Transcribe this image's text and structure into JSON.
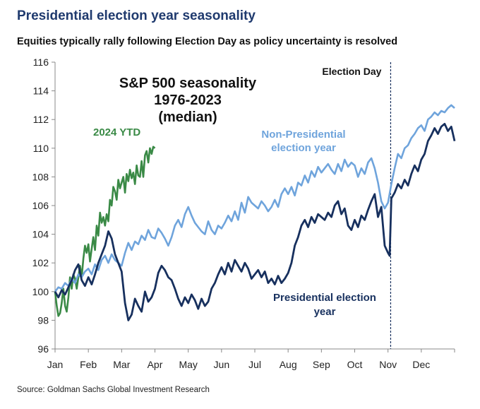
{
  "header": {
    "title": "Presidential election year seasonality",
    "subtitle": "Equities typically rally following Election Day as policy uncertainty is resolved"
  },
  "source": "Source: Goldman Sachs Global Investment Research",
  "chart_data": {
    "type": "line",
    "title": "S&P 500 seasonality 1976-2023 (median)",
    "title_lines": [
      "S&P 500 seasonality",
      "1976-2023",
      "(median)"
    ],
    "xlabel": "",
    "ylabel": "",
    "ylim": [
      96,
      116
    ],
    "yticks": [
      96,
      98,
      100,
      102,
      104,
      106,
      108,
      110,
      112,
      114,
      116
    ],
    "xlim": [
      0,
      12
    ],
    "months": [
      "Jan",
      "Feb",
      "Mar",
      "Apr",
      "May",
      "Jun",
      "Jul",
      "Aug",
      "Sep",
      "Oct",
      "Nov",
      "Dec"
    ],
    "grid": false,
    "colors": {
      "ytd": "#3a8a46",
      "non_presidential": "#6fa4dc",
      "presidential": "#17305e",
      "axis": "#888888"
    },
    "election_day": {
      "label": "Election Day",
      "x": 10.08
    },
    "annotations": {
      "ytd": "2024 YTD",
      "non_presidential": [
        "Non-Presidential",
        "election year"
      ],
      "presidential": [
        "Presidential election",
        "year"
      ]
    },
    "series": [
      {
        "name": "2024 YTD",
        "x": [
          0,
          0.05,
          0.1,
          0.15,
          0.2,
          0.25,
          0.3,
          0.35,
          0.4,
          0.45,
          0.5,
          0.55,
          0.6,
          0.65,
          0.7,
          0.75,
          0.8,
          0.85,
          0.9,
          0.95,
          1.0,
          1.05,
          1.1,
          1.15,
          1.2,
          1.25,
          1.3,
          1.35,
          1.4,
          1.45,
          1.5,
          1.55,
          1.6,
          1.65,
          1.7,
          1.75,
          1.8,
          1.85,
          1.9,
          1.95,
          2.0,
          2.05,
          2.1,
          2.15,
          2.2,
          2.25,
          2.3,
          2.35,
          2.4,
          2.45,
          2.5,
          2.55,
          2.6,
          2.65,
          2.7,
          2.75,
          2.8,
          2.85,
          2.9,
          2.95,
          3.0
        ],
        "values": [
          100.0,
          99.0,
          98.3,
          98.5,
          99.2,
          100.2,
          99.0,
          98.6,
          99.6,
          101.0,
          100.2,
          101.2,
          100.9,
          100.2,
          101.0,
          101.8,
          101.0,
          102.3,
          103.2,
          102.7,
          103.3,
          102.1,
          103.0,
          103.8,
          102.9,
          104.6,
          103.9,
          105.5,
          104.8,
          105.2,
          104.6,
          105.4,
          104.9,
          106.4,
          106.0,
          107.3,
          107.0,
          106.4,
          107.8,
          107.2,
          107.6,
          108.0,
          106.9,
          108.2,
          107.7,
          108.5,
          107.9,
          108.3,
          107.5,
          108.8,
          108.1,
          108.0,
          109.1,
          108.0,
          109.5,
          109.8,
          109.0,
          110.0,
          109.6,
          110.1,
          110.0
        ]
      },
      {
        "name": "Non-Presidential election year",
        "x": [
          0,
          0.1,
          0.2,
          0.3,
          0.4,
          0.5,
          0.6,
          0.7,
          0.8,
          0.9,
          1.0,
          1.1,
          1.2,
          1.3,
          1.4,
          1.5,
          1.6,
          1.7,
          1.8,
          1.9,
          2.0,
          2.1,
          2.2,
          2.3,
          2.4,
          2.5,
          2.6,
          2.7,
          2.8,
          2.9,
          3.0,
          3.1,
          3.2,
          3.3,
          3.4,
          3.5,
          3.6,
          3.7,
          3.8,
          3.9,
          4.0,
          4.1,
          4.2,
          4.3,
          4.4,
          4.5,
          4.6,
          4.7,
          4.8,
          4.9,
          5.0,
          5.1,
          5.2,
          5.3,
          5.4,
          5.5,
          5.6,
          5.7,
          5.8,
          5.9,
          6.0,
          6.1,
          6.2,
          6.3,
          6.4,
          6.5,
          6.6,
          6.7,
          6.8,
          6.9,
          7.0,
          7.1,
          7.2,
          7.3,
          7.4,
          7.5,
          7.6,
          7.7,
          7.8,
          7.9,
          8.0,
          8.1,
          8.2,
          8.3,
          8.4,
          8.5,
          8.6,
          8.7,
          8.8,
          8.9,
          9.0,
          9.1,
          9.2,
          9.3,
          9.4,
          9.5,
          9.6,
          9.7,
          9.8,
          9.9,
          10.0,
          10.1,
          10.2,
          10.3,
          10.4,
          10.5,
          10.6,
          10.7,
          10.8,
          10.9,
          11.0,
          11.1,
          11.2,
          11.3,
          11.4,
          11.5,
          11.6,
          11.7,
          11.8,
          11.9,
          12.0
        ],
        "values": [
          100.0,
          100.3,
          100.2,
          100.6,
          100.4,
          100.9,
          100.6,
          101.2,
          101.0,
          101.4,
          101.6,
          101.2,
          101.9,
          101.5,
          102.2,
          102.5,
          102.0,
          102.6,
          102.2,
          102.0,
          101.8,
          102.7,
          103.4,
          102.9,
          103.5,
          103.3,
          103.9,
          103.6,
          104.3,
          103.8,
          103.7,
          104.4,
          104.1,
          103.7,
          103.2,
          103.8,
          104.6,
          105.0,
          104.5,
          105.4,
          105.9,
          105.3,
          104.8,
          104.5,
          104.2,
          104.0,
          104.9,
          104.3,
          104.0,
          104.6,
          104.4,
          104.8,
          105.3,
          104.9,
          105.6,
          105.0,
          106.2,
          105.5,
          106.6,
          106.2,
          106.0,
          105.8,
          106.3,
          106.0,
          105.6,
          105.9,
          106.4,
          105.9,
          106.8,
          107.2,
          106.8,
          107.3,
          106.7,
          107.6,
          107.4,
          108.1,
          107.6,
          108.4,
          108.0,
          108.7,
          108.3,
          108.6,
          108.9,
          108.5,
          108.2,
          108.9,
          108.4,
          109.2,
          108.7,
          109.0,
          108.8,
          108.0,
          108.6,
          108.2,
          109.0,
          109.3,
          108.6,
          107.6,
          106.3,
          105.8,
          106.2,
          107.5,
          108.6,
          109.6,
          109.3,
          110.0,
          110.2,
          110.7,
          111.0,
          111.4,
          111.6,
          111.2,
          112.0,
          112.2,
          112.5,
          112.3,
          112.6,
          112.5,
          112.8,
          113.0,
          112.8
        ]
      },
      {
        "name": "Presidential election year",
        "x": [
          0,
          0.1,
          0.2,
          0.3,
          0.4,
          0.5,
          0.6,
          0.7,
          0.8,
          0.9,
          1.0,
          1.1,
          1.2,
          1.3,
          1.4,
          1.5,
          1.6,
          1.7,
          1.8,
          1.9,
          2.0,
          2.1,
          2.2,
          2.3,
          2.4,
          2.5,
          2.6,
          2.7,
          2.8,
          2.9,
          3.0,
          3.1,
          3.2,
          3.3,
          3.4,
          3.5,
          3.6,
          3.7,
          3.8,
          3.9,
          4.0,
          4.1,
          4.2,
          4.3,
          4.4,
          4.5,
          4.6,
          4.7,
          4.8,
          4.9,
          5.0,
          5.1,
          5.2,
          5.3,
          5.4,
          5.5,
          5.6,
          5.7,
          5.8,
          5.9,
          6.0,
          6.1,
          6.2,
          6.3,
          6.4,
          6.5,
          6.6,
          6.7,
          6.8,
          6.9,
          7.0,
          7.1,
          7.2,
          7.3,
          7.4,
          7.5,
          7.6,
          7.7,
          7.8,
          7.9,
          8.0,
          8.1,
          8.2,
          8.3,
          8.4,
          8.5,
          8.6,
          8.7,
          8.8,
          8.9,
          9.0,
          9.1,
          9.2,
          9.3,
          9.4,
          9.5,
          9.6,
          9.7,
          9.8,
          9.9,
          10.0,
          10.05,
          10.1,
          10.2,
          10.3,
          10.4,
          10.5,
          10.6,
          10.7,
          10.8,
          10.9,
          11.0,
          11.1,
          11.2,
          11.3,
          11.4,
          11.5,
          11.6,
          11.7,
          11.8,
          11.9,
          12.0
        ],
        "values": [
          100.0,
          99.6,
          100.1,
          99.8,
          100.3,
          100.8,
          101.5,
          101.9,
          100.8,
          100.4,
          101.0,
          100.5,
          101.2,
          102.0,
          102.6,
          103.2,
          104.2,
          103.7,
          102.6,
          102.0,
          101.4,
          99.2,
          98.0,
          98.4,
          99.5,
          99.0,
          98.6,
          100.0,
          99.3,
          99.6,
          100.2,
          101.3,
          101.8,
          101.5,
          101.0,
          100.8,
          100.2,
          99.5,
          99.0,
          99.6,
          99.2,
          99.8,
          99.4,
          98.8,
          99.5,
          99.0,
          99.3,
          100.2,
          100.6,
          101.2,
          101.7,
          101.2,
          102.0,
          101.4,
          102.2,
          101.8,
          101.4,
          102.0,
          101.6,
          100.9,
          101.2,
          101.5,
          101.0,
          101.4,
          100.6,
          100.9,
          100.5,
          101.1,
          100.6,
          100.9,
          101.3,
          102.0,
          103.2,
          103.8,
          104.6,
          105.0,
          104.5,
          105.2,
          104.8,
          105.4,
          105.2,
          105.0,
          105.5,
          105.2,
          106.0,
          106.3,
          105.4,
          105.8,
          104.6,
          104.3,
          105.0,
          104.5,
          105.3,
          105.0,
          105.7,
          106.3,
          106.8,
          105.2,
          105.9,
          103.2,
          102.7,
          102.5,
          106.5,
          106.9,
          107.5,
          107.2,
          107.8,
          107.4,
          108.2,
          108.8,
          108.4,
          109.2,
          109.6,
          110.5,
          110.9,
          111.4,
          111.0,
          111.5,
          111.7,
          111.2,
          111.5,
          110.5
        ]
      }
    ]
  }
}
